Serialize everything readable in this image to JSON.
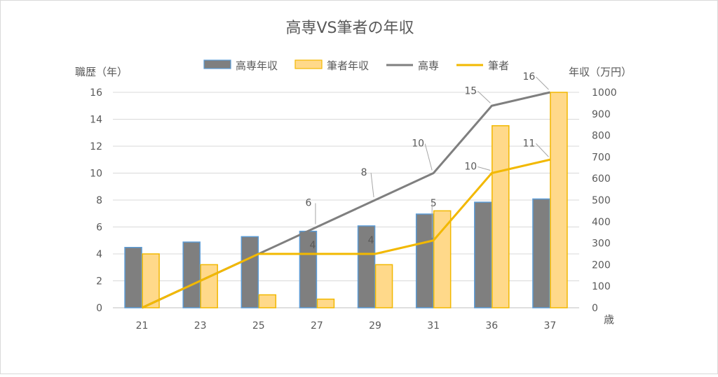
{
  "chart_data": {
    "type": "bar",
    "title": "高専VS筆者の年収",
    "categories": [
      "21",
      "23",
      "25",
      "27",
      "29",
      "31",
      "36",
      "37"
    ],
    "xlabel": "歳",
    "ylabel_left": "職歴（年）",
    "ylabel_right": "年収（万円）",
    "ylim_left": [
      0,
      16
    ],
    "yticks_left": [
      0,
      2,
      4,
      6,
      8,
      10,
      12,
      14,
      16
    ],
    "ylim_right": [
      0,
      1000
    ],
    "yticks_right": [
      0,
      100,
      200,
      300,
      400,
      500,
      600,
      700,
      800,
      900,
      1000
    ],
    "grid": true,
    "legend_position": "top",
    "series": [
      {
        "name": "高専年収",
        "kind": "bar",
        "axis": "right",
        "color": "#7f7f7f",
        "border": "#5b9bd5",
        "values": [
          280,
          305,
          330,
          355,
          380,
          435,
          490,
          505
        ]
      },
      {
        "name": "筆者年収",
        "kind": "bar",
        "axis": "right",
        "color": "#ffd98a",
        "border": "#f2b800",
        "values": [
          250,
          200,
          60,
          40,
          200,
          450,
          845,
          1000
        ]
      },
      {
        "name": "高専",
        "kind": "line",
        "axis": "left",
        "color": "#7f7f7f",
        "values": [
          0,
          2,
          4,
          6,
          8,
          10,
          15,
          16
        ],
        "labels": [
          "",
          "",
          "",
          "6",
          "8",
          "10",
          "15",
          "16"
        ]
      },
      {
        "name": "筆者",
        "kind": "line",
        "axis": "left",
        "color": "#f2b800",
        "values": [
          0,
          2,
          4,
          4,
          4,
          5,
          10,
          11
        ],
        "labels": [
          "",
          "",
          "",
          "4",
          "4",
          "5",
          "10",
          "11"
        ]
      }
    ]
  }
}
